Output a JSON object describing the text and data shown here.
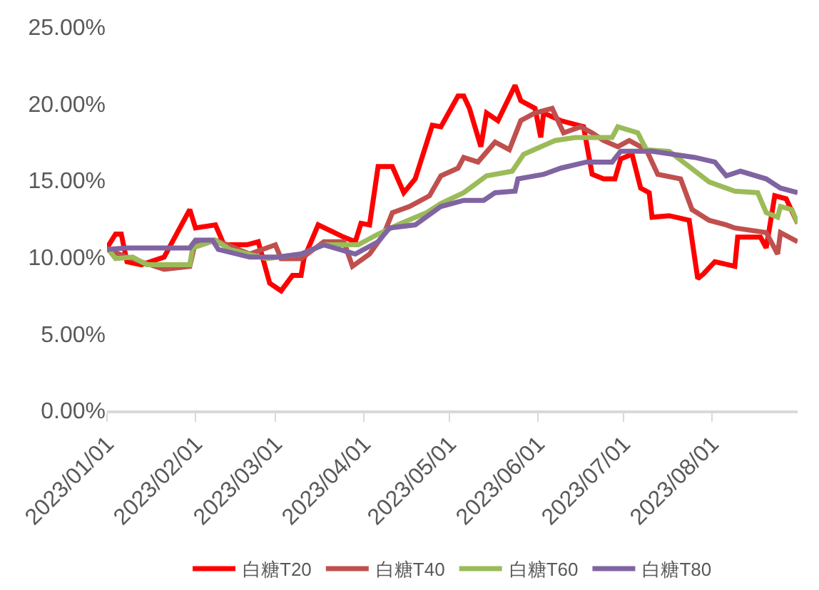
{
  "chart_data": {
    "type": "line",
    "x": [
      "2023-01-01",
      "2023-01-04",
      "2023-01-06",
      "2023-01-08",
      "2023-01-13",
      "2023-01-21",
      "2023-01-30",
      "2023-02-01",
      "2023-02-08",
      "2023-02-11",
      "2023-02-19",
      "2023-02-23",
      "2023-02-27",
      "2023-03-03",
      "2023-03-07",
      "2023-03-10",
      "2023-03-11",
      "2023-03-16",
      "2023-03-25",
      "2023-03-29",
      "2023-03-31",
      "2023-04-03",
      "2023-04-06",
      "2023-04-11",
      "2023-04-15",
      "2023-04-19",
      "2023-04-25",
      "2023-04-28",
      "2023-05-04",
      "2023-05-06",
      "2023-05-08",
      "2023-05-12",
      "2023-05-14",
      "2023-05-18",
      "2023-05-24",
      "2023-05-26",
      "2023-05-31",
      "2023-06-02",
      "2023-06-03",
      "2023-06-09",
      "2023-06-17",
      "2023-06-20",
      "2023-06-24",
      "2023-06-28",
      "2023-06-30",
      "2023-07-04",
      "2023-07-07",
      "2023-07-10",
      "2023-07-11",
      "2023-07-17",
      "2023-07-24",
      "2023-07-27",
      "2023-07-29",
      "2023-08-02",
      "2023-08-09",
      "2023-08-10",
      "2023-08-18",
      "2023-08-20",
      "2023-08-23",
      "2023-08-27",
      "2023-08-31"
    ],
    "series": [
      {
        "name": "白糖T20",
        "color": "#ff0000",
        "values": [
          10.6,
          11.5,
          11.5,
          9.7,
          9.5,
          10.0,
          13.1,
          11.9,
          12.1,
          10.8,
          10.8,
          11.0,
          8.3,
          7.8,
          8.8,
          8.8,
          9.9,
          12.1,
          11.3,
          11.0,
          12.2,
          12.1,
          15.9,
          15.9,
          14.2,
          15.1,
          18.6,
          18.5,
          20.5,
          20.5,
          19.7,
          17.2,
          19.4,
          18.9,
          21.2,
          20.2,
          19.7,
          17.8,
          19.4,
          18.9,
          18.5,
          15.4,
          15.1,
          15.1,
          16.4,
          16.7,
          14.5,
          14.2,
          12.6,
          12.7,
          12.4,
          8.6,
          8.9,
          9.7,
          9.4,
          11.3,
          11.3,
          10.6,
          14.0,
          13.8,
          12.2
        ]
      },
      {
        "name": "白糖T40",
        "color": "#c0504d",
        "x": [
          "2023-01-01",
          "2023-01-08",
          "2023-01-21",
          "2023-01-30",
          "2023-02-01",
          "2023-02-08",
          "2023-02-20",
          "2023-03-01",
          "2023-03-03",
          "2023-03-10",
          "2023-03-18",
          "2023-03-25",
          "2023-03-28",
          "2023-04-03",
          "2023-04-08",
          "2023-04-11",
          "2023-04-17",
          "2023-04-24",
          "2023-04-28",
          "2023-05-04",
          "2023-05-06",
          "2023-05-11",
          "2023-05-17",
          "2023-05-22",
          "2023-05-26",
          "2023-05-31",
          "2023-06-06",
          "2023-06-10",
          "2023-06-16",
          "2023-06-20",
          "2023-06-24",
          "2023-06-29",
          "2023-07-03",
          "2023-07-09",
          "2023-07-13",
          "2023-07-21",
          "2023-07-25",
          "2023-07-31",
          "2023-08-06",
          "2023-08-09",
          "2023-08-20",
          "2023-08-24",
          "2023-08-25",
          "2023-08-31"
        ],
        "values": [
          10.5,
          10.0,
          9.2,
          9.4,
          11.0,
          11.1,
          10.2,
          10.8,
          9.9,
          9.9,
          11.0,
          11.0,
          9.4,
          10.2,
          11.5,
          12.9,
          13.3,
          14.0,
          15.3,
          15.8,
          16.5,
          16.2,
          17.5,
          17.0,
          18.9,
          19.4,
          19.7,
          18.1,
          18.5,
          18.1,
          17.6,
          17.2,
          17.6,
          17.0,
          15.4,
          15.1,
          13.1,
          12.4,
          12.1,
          11.9,
          11.6,
          10.2,
          11.6,
          11.0
        ]
      },
      {
        "name": "白糖T60",
        "color": "#9bbb59",
        "x": [
          "2023-01-01",
          "2023-01-04",
          "2023-01-10",
          "2023-01-15",
          "2023-01-30",
          "2023-01-31",
          "2023-02-08",
          "2023-02-13",
          "2023-02-26",
          "2023-03-10",
          "2023-03-18",
          "2023-03-30",
          "2023-04-06",
          "2023-04-14",
          "2023-04-23",
          "2023-04-28",
          "2023-05-06",
          "2023-05-14",
          "2023-05-23",
          "2023-05-27",
          "2023-06-07",
          "2023-06-14",
          "2023-06-27",
          "2023-06-29",
          "2023-07-06",
          "2023-07-09",
          "2023-07-17",
          "2023-07-24",
          "2023-07-31",
          "2023-08-09",
          "2023-08-17",
          "2023-08-20",
          "2023-08-24",
          "2023-08-25",
          "2023-08-29",
          "2023-08-31"
        ],
        "values": [
          10.6,
          9.9,
          10.0,
          9.5,
          9.5,
          10.6,
          11.1,
          10.5,
          9.9,
          10.2,
          10.8,
          10.8,
          11.5,
          12.2,
          12.9,
          13.5,
          14.2,
          15.3,
          15.6,
          16.7,
          17.6,
          17.8,
          17.8,
          18.5,
          18.1,
          17.0,
          16.9,
          15.9,
          14.9,
          14.3,
          14.2,
          12.9,
          12.6,
          13.3,
          13.1,
          12.2
        ]
      },
      {
        "name": "白糖T80",
        "color": "#8064a2",
        "x": [
          "2023-01-01",
          "2023-01-08",
          "2023-01-30",
          "2023-02-01",
          "2023-02-07",
          "2023-02-09",
          "2023-02-20",
          "2023-03-02",
          "2023-03-10",
          "2023-03-18",
          "2023-03-29",
          "2023-04-06",
          "2023-04-10",
          "2023-04-19",
          "2023-04-28",
          "2023-05-06",
          "2023-05-13",
          "2023-05-17",
          "2023-05-24",
          "2023-05-25",
          "2023-06-03",
          "2023-06-09",
          "2023-06-18",
          "2023-06-27",
          "2023-06-30",
          "2023-07-11",
          "2023-07-26",
          "2023-08-02",
          "2023-08-06",
          "2023-08-11",
          "2023-08-20",
          "2023-08-25",
          "2023-08-31"
        ],
        "values": [
          10.5,
          10.6,
          10.6,
          11.1,
          11.1,
          10.5,
          10.0,
          10.0,
          10.2,
          10.8,
          10.2,
          11.0,
          11.9,
          12.1,
          13.3,
          13.7,
          13.7,
          14.2,
          14.3,
          15.1,
          15.4,
          15.8,
          16.2,
          16.2,
          16.9,
          16.9,
          16.5,
          16.2,
          15.3,
          15.6,
          15.1,
          14.5,
          14.2
        ]
      }
    ],
    "xlim": [
      "2023-01-01",
      "2023-08-31"
    ],
    "xticks": [
      {
        "value": "2023-01-01",
        "label": "2023/01/01"
      },
      {
        "value": "2023-02-01",
        "label": "2023/02/01"
      },
      {
        "value": "2023-03-01",
        "label": "2023/03/01"
      },
      {
        "value": "2023-04-01",
        "label": "2023/04/01"
      },
      {
        "value": "2023-05-01",
        "label": "2023/05/01"
      },
      {
        "value": "2023-06-01",
        "label": "2023/06/01"
      },
      {
        "value": "2023-07-01",
        "label": "2023/07/01"
      },
      {
        "value": "2023-08-01",
        "label": "2023/08/01"
      }
    ],
    "ylim": [
      0,
      25
    ],
    "yticks": [
      {
        "value": 0,
        "label": "0.00%"
      },
      {
        "value": 5,
        "label": "5.00%"
      },
      {
        "value": 10,
        "label": "10.00%"
      },
      {
        "value": 15,
        "label": "15.00%"
      },
      {
        "value": 20,
        "label": "20.00%"
      },
      {
        "value": 25,
        "label": "25.00%"
      }
    ],
    "grid": false,
    "legend": "bottom",
    "marker": "none",
    "line_style": "solid"
  }
}
